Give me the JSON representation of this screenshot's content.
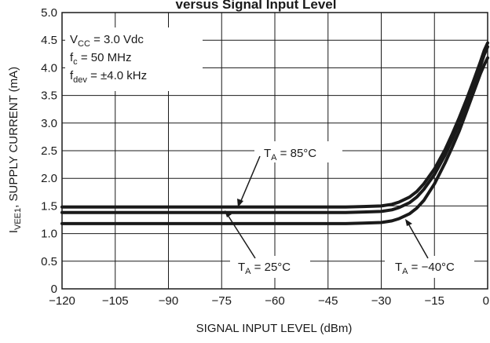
{
  "chart_data": {
    "type": "line",
    "title": "versus Signal Input Level",
    "xlabel": "SIGNAL INPUT LEVEL (dBm)",
    "ylabel_prefix": "I",
    "ylabel_sub": "VEE1",
    "ylabel_rest": ", SUPPLY CURRENT (mA)",
    "xlim": [
      -120,
      0
    ],
    "ylim": [
      0,
      5.0
    ],
    "x_ticks": [
      "−120",
      "−105",
      "−90",
      "−75",
      "−60",
      "−45",
      "−30",
      "−15",
      "0"
    ],
    "y_ticks": [
      "0",
      "0.5",
      "1.0",
      "1.5",
      "2.0",
      "2.5",
      "3.0",
      "3.5",
      "4.0",
      "4.5",
      "5.0"
    ],
    "grid": true,
    "conditions": [
      {
        "main": "V",
        "sub": "CC",
        "rest": " = 3.0 Vdc"
      },
      {
        "main": "f",
        "sub": "c",
        "rest": " = 50 MHz"
      },
      {
        "main": "f",
        "sub": "dev",
        "rest": " = ±4.0 kHz"
      }
    ],
    "series": [
      {
        "name": "TA = 85°C",
        "label_main": "T",
        "label_sub": "A",
        "label_rest": " = 85°C",
        "x": [
          -120,
          -105,
          -90,
          -75,
          -60,
          -45,
          -40,
          -35,
          -30,
          -27,
          -25,
          -22,
          -20,
          -18,
          -15,
          -12,
          -10,
          -8,
          -6,
          -4,
          -2,
          -1,
          0
        ],
        "y": [
          1.48,
          1.48,
          1.48,
          1.48,
          1.48,
          1.48,
          1.48,
          1.49,
          1.5,
          1.53,
          1.57,
          1.66,
          1.76,
          1.9,
          2.17,
          2.52,
          2.8,
          3.1,
          3.42,
          3.76,
          4.12,
          4.31,
          4.45
        ]
      },
      {
        "name": "TA = 25°C",
        "label_main": "T",
        "label_sub": "A",
        "label_rest": " = 25°C",
        "x": [
          -120,
          -105,
          -90,
          -75,
          -60,
          -45,
          -40,
          -35,
          -30,
          -27,
          -25,
          -22,
          -20,
          -18,
          -15,
          -12,
          -10,
          -8,
          -6,
          -4,
          -2,
          -1,
          0
        ],
        "y": [
          1.38,
          1.38,
          1.38,
          1.38,
          1.38,
          1.38,
          1.38,
          1.39,
          1.4,
          1.43,
          1.47,
          1.56,
          1.66,
          1.8,
          2.07,
          2.42,
          2.7,
          3.0,
          3.33,
          3.68,
          4.04,
          4.23,
          4.38
        ]
      },
      {
        "name": "TA = −40°C",
        "label_main": "T",
        "label_sub": "A",
        "label_rest": " = −40°C",
        "x": [
          -120,
          -105,
          -90,
          -75,
          -60,
          -45,
          -40,
          -35,
          -30,
          -27,
          -25,
          -22,
          -20,
          -18,
          -15,
          -12,
          -10,
          -8,
          -6,
          -4,
          -2,
          -1,
          0
        ],
        "y": [
          1.18,
          1.18,
          1.18,
          1.18,
          1.18,
          1.18,
          1.18,
          1.19,
          1.2,
          1.23,
          1.27,
          1.36,
          1.46,
          1.6,
          1.9,
          2.28,
          2.56,
          2.86,
          3.2,
          3.55,
          3.9,
          4.05,
          4.18
        ]
      }
    ],
    "line_color": "#1a1a1a",
    "grid_color": "#1a1a1a"
  }
}
